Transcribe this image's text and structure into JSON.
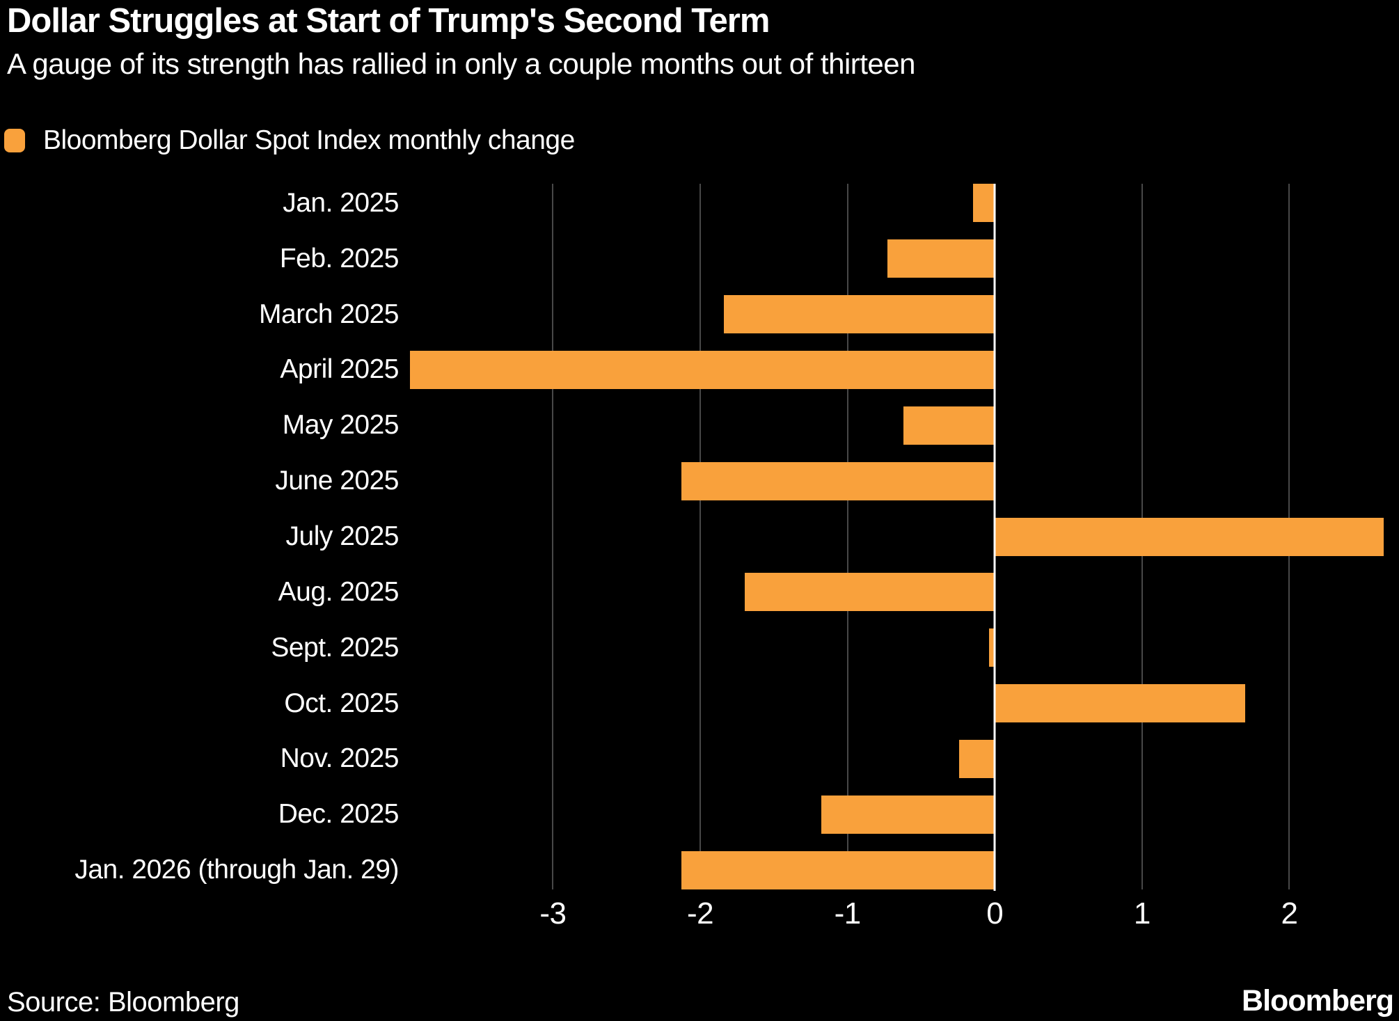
{
  "header": {
    "title": "Dollar Struggles at Start of Trump's Second Term",
    "subtitle": "A gauge of its strength has rallied in only a couple months out of thirteen"
  },
  "legend": {
    "label": "Bloomberg Dollar Spot Index monthly change"
  },
  "footer": {
    "source": "Source: Bloomberg",
    "brand": "Bloomberg"
  },
  "colors": {
    "background": "#000000",
    "bar": "#F9A13C",
    "grid": "#484848",
    "zero_line": "#FFFFFF",
    "text": "#FFFFFF"
  },
  "chart_data": {
    "type": "bar",
    "orientation": "horizontal",
    "title": "Dollar Struggles at Start of Trump's Second Term",
    "subtitle": "A gauge of its strength has rallied in only a couple months out of thirteen",
    "legend_entries": [
      "Bloomberg Dollar Spot Index monthly change"
    ],
    "legend_position": "top-left",
    "categories": [
      "Jan. 2025",
      "Feb. 2025",
      "March 2025",
      "April 2025",
      "May 2025",
      "June 2025",
      "July 2025",
      "Aug. 2025",
      "Sept. 2025",
      "Oct. 2025",
      "Nov. 2025",
      "Dec. 2025",
      "Jan. 2026 (through Jan. 29)"
    ],
    "values": [
      -0.15,
      -0.73,
      -1.84,
      -3.97,
      -0.62,
      -2.13,
      2.64,
      -1.7,
      -0.04,
      1.7,
      -0.24,
      -1.18,
      -2.13
    ],
    "xlabel": "",
    "ylabel": "",
    "xlim": [
      -3.99,
      2.65
    ],
    "xticks": [
      -3,
      -2,
      -1,
      0,
      1,
      2
    ],
    "grid": "vertical-gridlines-on",
    "zero_line": true
  }
}
